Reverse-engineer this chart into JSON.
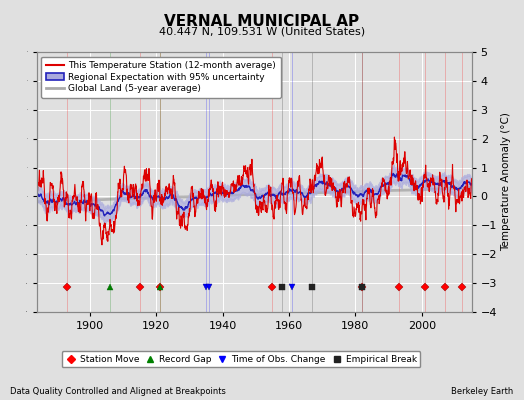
{
  "title": "VERNAL MUNICIPAL AP",
  "subtitle": "40.447 N, 109.531 W (United States)",
  "xlabel_left": "Data Quality Controlled and Aligned at Breakpoints",
  "xlabel_right": "Berkeley Earth",
  "ylabel": "Temperature Anomaly (°C)",
  "ylim": [
    -4,
    5
  ],
  "xlim": [
    1884,
    2015
  ],
  "xticks": [
    1900,
    1920,
    1940,
    1960,
    1980,
    2000
  ],
  "yticks": [
    -4,
    -3,
    -2,
    -1,
    0,
    1,
    2,
    3,
    4,
    5
  ],
  "background_color": "#e0e0e0",
  "plot_bg_color": "#e0e0e0",
  "grid_color": "#ffffff",
  "station_color": "#dd0000",
  "regional_color": "#2222bb",
  "regional_fill_color": "#aaaadd",
  "global_color": "#aaaaaa",
  "station_moves": [
    1893,
    1915,
    1921,
    1955,
    1982,
    1993,
    2001,
    2007,
    2012
  ],
  "record_gaps": [
    1906,
    1921
  ],
  "tobs_changes": [
    1935,
    1936,
    1961
  ],
  "emp_breaks": [
    1958,
    1967,
    1982
  ],
  "marker_y": -3.15,
  "seed": 12345
}
